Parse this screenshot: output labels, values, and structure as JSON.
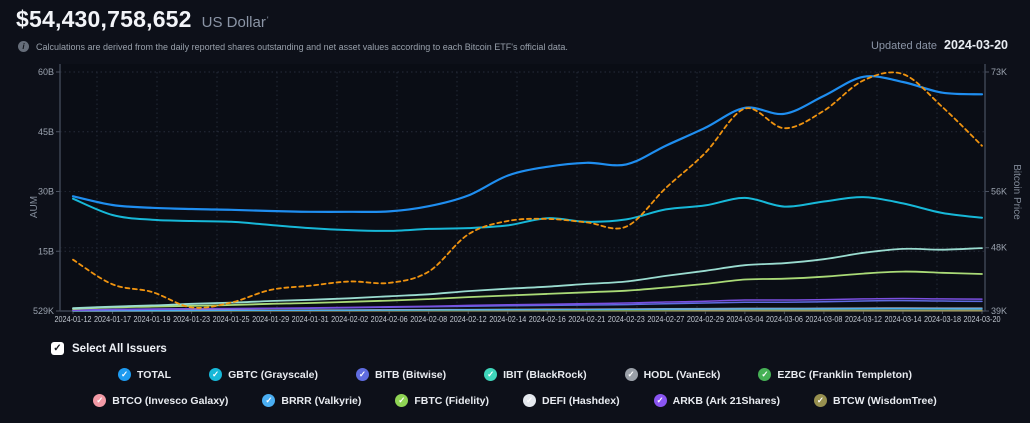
{
  "header": {
    "total_value": "$54,430,758,652",
    "currency_label": "US Dollar",
    "currency_mark": "'"
  },
  "info_bar": {
    "note": "Calculations are derived from the daily reported shares outstanding and net asset values according to each Bitcoin ETF's official data.",
    "updated_label": "Updated date",
    "updated_date": "2024-03-20"
  },
  "icons": {
    "check": "✓",
    "info": "i"
  },
  "controls": {
    "select_all_label": "Select All Issuers",
    "select_all_checked": true
  },
  "legend": {
    "rows": [
      [
        {
          "label": "TOTAL",
          "color": "#1e9bf0"
        },
        {
          "label": "GBTC (Grayscale)",
          "color": "#17b8d8"
        },
        {
          "label": "BITB (Bitwise)",
          "color": "#5f6ce0"
        },
        {
          "label": "IBIT (BlackRock)",
          "color": "#3fd6bb"
        },
        {
          "label": "HODL (VanEck)",
          "color": "#9aa0a8"
        },
        {
          "label": "EZBC (Franklin Templeton)",
          "color": "#46b155"
        }
      ],
      [
        {
          "label": "BTCO (Invesco Galaxy)",
          "color": "#f29aa6"
        },
        {
          "label": "BRRR (Valkyrie)",
          "color": "#4aaef2"
        },
        {
          "label": "FBTC (Fidelity)",
          "color": "#8fd454"
        },
        {
          "label": "DEFI (Hashdex)",
          "color": "#e4e8ee"
        },
        {
          "label": "ARKB (Ark 21Shares)",
          "color": "#8a55f2"
        },
        {
          "label": "BTCW (WisdomTree)",
          "color": "#97904f"
        }
      ]
    ]
  },
  "chart_data": {
    "type": "line",
    "x_labels": [
      "2024-01-12",
      "2024-01-17",
      "2024-01-19",
      "2024-01-23",
      "2024-01-25",
      "2024-01-29",
      "2024-01-31",
      "2024-02-02",
      "2024-02-06",
      "2024-02-08",
      "2024-02-12",
      "2024-02-14",
      "2024-02-16",
      "2024-02-21",
      "2024-02-23",
      "2024-02-27",
      "2024-02-29",
      "2024-03-04",
      "2024-03-06",
      "2024-03-08",
      "2024-03-12",
      "2024-03-14",
      "2024-03-18",
      "2024-03-20"
    ],
    "left_axis": {
      "title": "AUM",
      "min": 0,
      "max": 60,
      "ticks": [
        {
          "label": "60B",
          "value": 60
        },
        {
          "label": "45B",
          "value": 45
        },
        {
          "label": "30B",
          "value": 30
        },
        {
          "label": "15B",
          "value": 15
        },
        {
          "label": "529K",
          "value": 0
        }
      ]
    },
    "right_axis": {
      "title": "Bitcoin Price",
      "min": 39,
      "max": 73,
      "ticks": [
        {
          "label": "73K",
          "value": 73
        },
        {
          "label": "56K",
          "value": 56
        },
        {
          "label": "48K",
          "value": 48
        },
        {
          "label": "39K",
          "value": 39
        }
      ],
      "gridline_values": [
        56,
        48
      ]
    },
    "grid": true,
    "legend_position": "bottom",
    "series": [
      {
        "name": "DEFI (Hashdex)",
        "axis": "left",
        "unit": "B",
        "color": "#e4e8ee",
        "width": 1.3,
        "dashed": false,
        "values": [
          0.005,
          0.008,
          0.01,
          0.012,
          0.014,
          0.016,
          0.018,
          0.02,
          0.022,
          0.024,
          0.026,
          0.028,
          0.03,
          0.032,
          0.034,
          0.037,
          0.04,
          0.043,
          0.043,
          0.045,
          0.048,
          0.049,
          0.047,
          0.046
        ]
      },
      {
        "name": "BTCW (WisdomTree)",
        "axis": "left",
        "unit": "B",
        "color": "#97904f",
        "width": 1.3,
        "dashed": false,
        "values": [
          0.004,
          0.006,
          0.008,
          0.01,
          0.012,
          0.014,
          0.015,
          0.017,
          0.019,
          0.021,
          0.023,
          0.025,
          0.027,
          0.029,
          0.031,
          0.034,
          0.037,
          0.04,
          0.04,
          0.042,
          0.045,
          0.046,
          0.044,
          0.043
        ]
      },
      {
        "name": "HODL (VanEck)",
        "axis": "left",
        "unit": "B",
        "color": "#9aa0a8",
        "width": 1.3,
        "dashed": false,
        "values": [
          0.05,
          0.1,
          0.12,
          0.15,
          0.17,
          0.2,
          0.22,
          0.25,
          0.3,
          0.33,
          0.38,
          0.42,
          0.45,
          0.48,
          0.52,
          0.58,
          0.63,
          0.68,
          0.68,
          0.7,
          0.75,
          0.78,
          0.76,
          0.75
        ]
      },
      {
        "name": "EZBC (Franklin Templeton)",
        "axis": "left",
        "unit": "B",
        "color": "#46b155",
        "width": 1.3,
        "dashed": false,
        "values": [
          0.03,
          0.06,
          0.08,
          0.1,
          0.12,
          0.14,
          0.16,
          0.18,
          0.2,
          0.22,
          0.25,
          0.27,
          0.29,
          0.31,
          0.33,
          0.36,
          0.39,
          0.42,
          0.42,
          0.43,
          0.46,
          0.47,
          0.46,
          0.45
        ]
      },
      {
        "name": "BTCO (Invesco Galaxy)",
        "axis": "left",
        "unit": "B",
        "color": "#f29aa6",
        "width": 1.3,
        "dashed": false,
        "values": [
          0.08,
          0.12,
          0.15,
          0.18,
          0.2,
          0.22,
          0.24,
          0.26,
          0.28,
          0.3,
          0.33,
          0.35,
          0.37,
          0.39,
          0.41,
          0.44,
          0.47,
          0.5,
          0.5,
          0.51,
          0.53,
          0.54,
          0.52,
          0.51
        ]
      },
      {
        "name": "BRRR (Valkyrie)",
        "axis": "left",
        "unit": "B",
        "color": "#4aaef2",
        "width": 1.3,
        "dashed": false,
        "values": [
          0.05,
          0.08,
          0.1,
          0.12,
          0.14,
          0.16,
          0.18,
          0.2,
          0.23,
          0.26,
          0.3,
          0.33,
          0.35,
          0.38,
          0.4,
          0.44,
          0.48,
          0.52,
          0.52,
          0.54,
          0.57,
          0.58,
          0.56,
          0.55
        ]
      },
      {
        "name": "BITB (Bitwise)",
        "axis": "left",
        "unit": "B",
        "color": "#5f6ce0",
        "width": 1.5,
        "dashed": false,
        "values": [
          0.2,
          0.4,
          0.5,
          0.55,
          0.6,
          0.65,
          0.7,
          0.8,
          0.95,
          1.05,
          1.2,
          1.3,
          1.4,
          1.5,
          1.6,
          1.8,
          2.0,
          2.2,
          2.2,
          2.3,
          2.5,
          2.6,
          2.5,
          2.4
        ]
      },
      {
        "name": "ARKB (Ark 21Shares)",
        "axis": "left",
        "unit": "B",
        "color": "#7a4fe0",
        "width": 1.5,
        "dashed": false,
        "values": [
          0.2,
          0.35,
          0.45,
          0.55,
          0.6,
          0.68,
          0.78,
          0.9,
          1.05,
          1.2,
          1.4,
          1.55,
          1.7,
          1.85,
          2.0,
          2.25,
          2.45,
          2.75,
          2.75,
          2.85,
          3.05,
          3.15,
          3.05,
          3.0
        ]
      },
      {
        "name": "FBTC (Fidelity)",
        "axis": "left",
        "unit": "B",
        "color": "#aada77",
        "width": 1.8,
        "dashed": false,
        "values": [
          0.5,
          0.9,
          1.1,
          1.3,
          1.5,
          1.8,
          2.0,
          2.3,
          2.6,
          3.0,
          3.5,
          3.9,
          4.3,
          4.7,
          5.1,
          5.9,
          6.8,
          7.9,
          8.1,
          8.6,
          9.4,
          9.9,
          9.6,
          9.3
        ]
      },
      {
        "name": "IBIT (BlackRock)",
        "axis": "left",
        "unit": "B",
        "color": "#9adcd0",
        "width": 1.8,
        "dashed": false,
        "values": [
          0.7,
          1.1,
          1.4,
          1.8,
          2.1,
          2.5,
          2.8,
          3.2,
          3.7,
          4.2,
          5.0,
          5.6,
          6.1,
          6.8,
          7.4,
          8.8,
          10.1,
          11.5,
          12.0,
          13.0,
          14.6,
          15.6,
          15.4,
          15.8
        ]
      },
      {
        "name": "GBTC (Grayscale)",
        "axis": "left",
        "unit": "B",
        "color": "#17b8d8",
        "width": 2,
        "dashed": false,
        "values": [
          28.2,
          24.1,
          22.9,
          22.6,
          22.4,
          21.6,
          20.8,
          20.3,
          20.1,
          20.6,
          20.8,
          21.5,
          23.3,
          22.4,
          23.0,
          25.5,
          26.5,
          28.4,
          26.2,
          27.5,
          28.6,
          27.0,
          24.6,
          23.4
        ]
      },
      {
        "name": "TOTAL",
        "axis": "left",
        "unit": "B",
        "color": "#1f8ef0",
        "width": 2.2,
        "dashed": false,
        "values": [
          28.8,
          26.6,
          25.9,
          25.6,
          25.4,
          25.1,
          24.9,
          24.9,
          25.0,
          26.3,
          29.0,
          34.0,
          36.2,
          37.2,
          36.8,
          41.5,
          46.0,
          51.0,
          49.5,
          54.0,
          58.8,
          57.5,
          54.8,
          54.4
        ]
      },
      {
        "name": "Bitcoin Price",
        "axis": "right",
        "unit": "K",
        "color": "#f0930f",
        "width": 1.8,
        "dashed": true,
        "values": [
          46.3,
          42.8,
          41.7,
          39.5,
          40.2,
          42.0,
          42.6,
          43.2,
          43.0,
          44.6,
          49.9,
          51.8,
          52.1,
          51.6,
          51.0,
          56.5,
          61.5,
          67.8,
          65.0,
          67.5,
          71.8,
          72.7,
          68.0,
          62.5
        ]
      }
    ]
  }
}
